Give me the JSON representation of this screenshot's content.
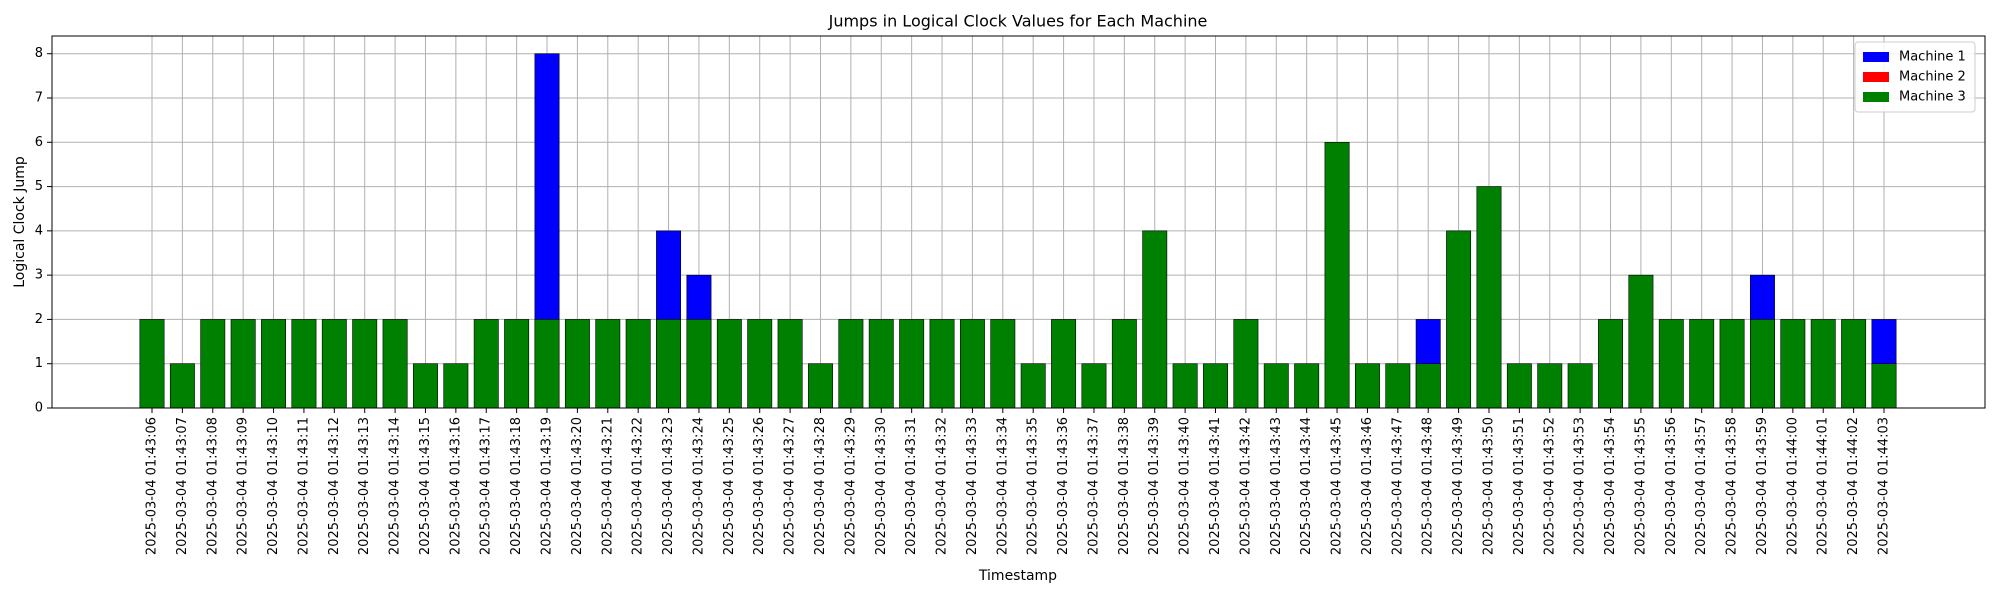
{
  "chart_data": {
    "type": "bar",
    "title": "Jumps in Logical Clock Values for Each Machine",
    "x_label": "Timestamp",
    "y_label": "Logical Clock Jump",
    "categories": [
      "2025-03-04 01:43:06",
      "2025-03-04 01:43:07",
      "2025-03-04 01:43:08",
      "2025-03-04 01:43:09",
      "2025-03-04 01:43:10",
      "2025-03-04 01:43:11",
      "2025-03-04 01:43:12",
      "2025-03-04 01:43:13",
      "2025-03-04 01:43:14",
      "2025-03-04 01:43:15",
      "2025-03-04 01:43:16",
      "2025-03-04 01:43:17",
      "2025-03-04 01:43:18",
      "2025-03-04 01:43:19",
      "2025-03-04 01:43:20",
      "2025-03-04 01:43:21",
      "2025-03-04 01:43:22",
      "2025-03-04 01:43:23",
      "2025-03-04 01:43:24",
      "2025-03-04 01:43:25",
      "2025-03-04 01:43:26",
      "2025-03-04 01:43:27",
      "2025-03-04 01:43:28",
      "2025-03-04 01:43:29",
      "2025-03-04 01:43:30",
      "2025-03-04 01:43:31",
      "2025-03-04 01:43:32",
      "2025-03-04 01:43:33",
      "2025-03-04 01:43:34",
      "2025-03-04 01:43:35",
      "2025-03-04 01:43:36",
      "2025-03-04 01:43:37",
      "2025-03-04 01:43:38",
      "2025-03-04 01:43:39",
      "2025-03-04 01:43:40",
      "2025-03-04 01:43:41",
      "2025-03-04 01:43:42",
      "2025-03-04 01:43:43",
      "2025-03-04 01:43:44",
      "2025-03-04 01:43:45",
      "2025-03-04 01:43:46",
      "2025-03-04 01:43:47",
      "2025-03-04 01:43:48",
      "2025-03-04 01:43:49",
      "2025-03-04 01:43:50",
      "2025-03-04 01:43:51",
      "2025-03-04 01:43:52",
      "2025-03-04 01:43:53",
      "2025-03-04 01:43:54",
      "2025-03-04 01:43:55",
      "2025-03-04 01:43:56",
      "2025-03-04 01:43:57",
      "2025-03-04 01:43:58",
      "2025-03-04 01:43:59",
      "2025-03-04 01:44:00",
      "2025-03-04 01:44:01",
      "2025-03-04 01:44:02",
      "2025-03-04 01:44:03"
    ],
    "series": [
      {
        "name": "Machine 1",
        "color": "#0000ff",
        "values": [
          null,
          null,
          null,
          null,
          null,
          null,
          null,
          null,
          null,
          null,
          null,
          null,
          null,
          8,
          null,
          null,
          null,
          4,
          3,
          null,
          null,
          null,
          null,
          null,
          null,
          null,
          null,
          null,
          null,
          null,
          null,
          null,
          null,
          null,
          null,
          null,
          null,
          null,
          null,
          null,
          null,
          null,
          2,
          null,
          null,
          null,
          null,
          null,
          null,
          null,
          null,
          null,
          null,
          3,
          null,
          null,
          null,
          2
        ]
      },
      {
        "name": "Machine 2",
        "color": "#ff0000",
        "values": [
          null,
          null,
          null,
          null,
          null,
          null,
          null,
          null,
          null,
          null,
          null,
          null,
          null,
          null,
          null,
          null,
          null,
          null,
          null,
          null,
          null,
          null,
          null,
          null,
          null,
          null,
          null,
          null,
          null,
          null,
          null,
          null,
          null,
          null,
          null,
          null,
          null,
          null,
          null,
          null,
          null,
          null,
          null,
          null,
          null,
          null,
          null,
          null,
          null,
          null,
          null,
          null,
          null,
          null,
          null,
          null,
          null,
          null
        ]
      },
      {
        "name": "Machine 3",
        "color": "#008000",
        "values": [
          2,
          1,
          2,
          2,
          2,
          2,
          2,
          2,
          2,
          1,
          1,
          2,
          2,
          2,
          2,
          2,
          2,
          2,
          2,
          2,
          2,
          2,
          1,
          2,
          2,
          2,
          2,
          2,
          2,
          1,
          2,
          1,
          2,
          4,
          1,
          1,
          2,
          1,
          1,
          6,
          1,
          1,
          1,
          4,
          5,
          1,
          1,
          1,
          2,
          3,
          2,
          2,
          2,
          2,
          2,
          2,
          2,
          1
        ]
      }
    ],
    "ylim": [
      0,
      8.4
    ],
    "yticks": [
      0,
      1,
      2,
      3,
      4,
      5,
      6,
      7,
      8
    ],
    "grid": true,
    "legend": "upper right"
  }
}
